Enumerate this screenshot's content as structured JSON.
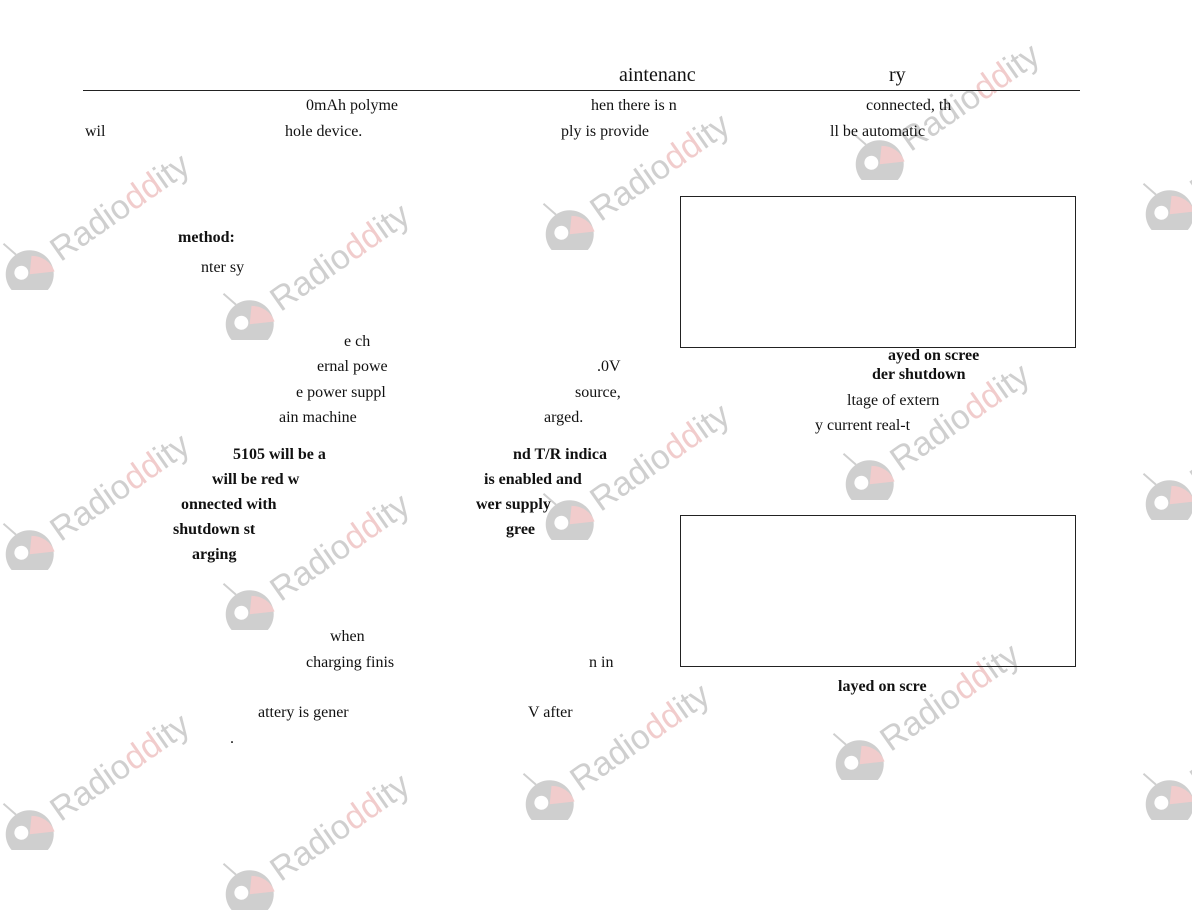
{
  "header": {
    "title_left": "aintenanc",
    "title_right": "ry"
  },
  "intro": {
    "line1": [
      "0mAh polyme",
      "hen there is n",
      "connected, th"
    ],
    "line2": [
      "wil",
      "hole device.",
      "ply is provide",
      "ll be automatic"
    ]
  },
  "left_column": {
    "method_heading": "method:",
    "line_a": "nter sy",
    "line_b": "e ch",
    "line_c": [
      "ernal powe",
      ".0V"
    ],
    "line_d": [
      "e power suppl",
      "source,"
    ],
    "line_e": [
      "ain machine",
      "arged."
    ],
    "bold_lines": [
      [
        "5105 will be a",
        "nd T/R indica"
      ],
      [
        "will be red w",
        "is enabled and"
      ],
      [
        "onnected with",
        "wer supply"
      ],
      [
        "shutdown st",
        "gree"
      ],
      [
        "arging",
        ""
      ]
    ],
    "when_line": "when",
    "charging_line": [
      "charging finis",
      "n in"
    ],
    "battery_line": [
      "attery is gener",
      "V after"
    ],
    "period": "."
  },
  "right_column": {
    "caption1_line1": "ayed on scree",
    "caption1_line2": "der shutdown",
    "body_line1": "ltage of extern",
    "body_line2": "y current real-t",
    "caption2": "layed on scre"
  },
  "watermark": {
    "text": "Radioddity",
    "colors": {
      "gray": "#a8a8a8",
      "red": "#e7a4a4"
    }
  }
}
